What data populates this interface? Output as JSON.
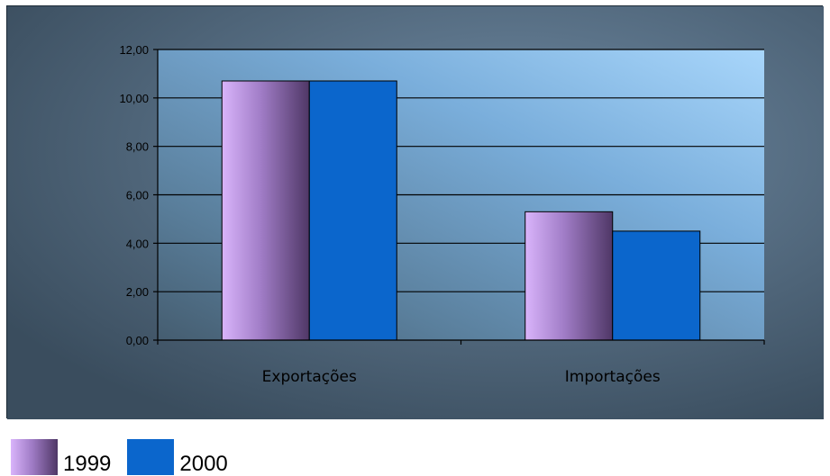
{
  "chart_data": {
    "type": "bar",
    "categories": [
      "Exportações",
      "Importações"
    ],
    "series": [
      {
        "name": "1999",
        "values": [
          10.7,
          5.3
        ],
        "color": "#c9a0ee",
        "color_dark": "#5a3f72"
      },
      {
        "name": "2000",
        "values": [
          10.7,
          4.5
        ],
        "color": "#0b66cc"
      }
    ],
    "yticks": [
      "0,00",
      "2,00",
      "4,00",
      "6,00",
      "8,00",
      "10,00",
      "12,00"
    ],
    "ylim": [
      0,
      12
    ],
    "grid": true,
    "legend_position": "bottom-left",
    "title": "",
    "xlabel": "",
    "ylabel": ""
  }
}
